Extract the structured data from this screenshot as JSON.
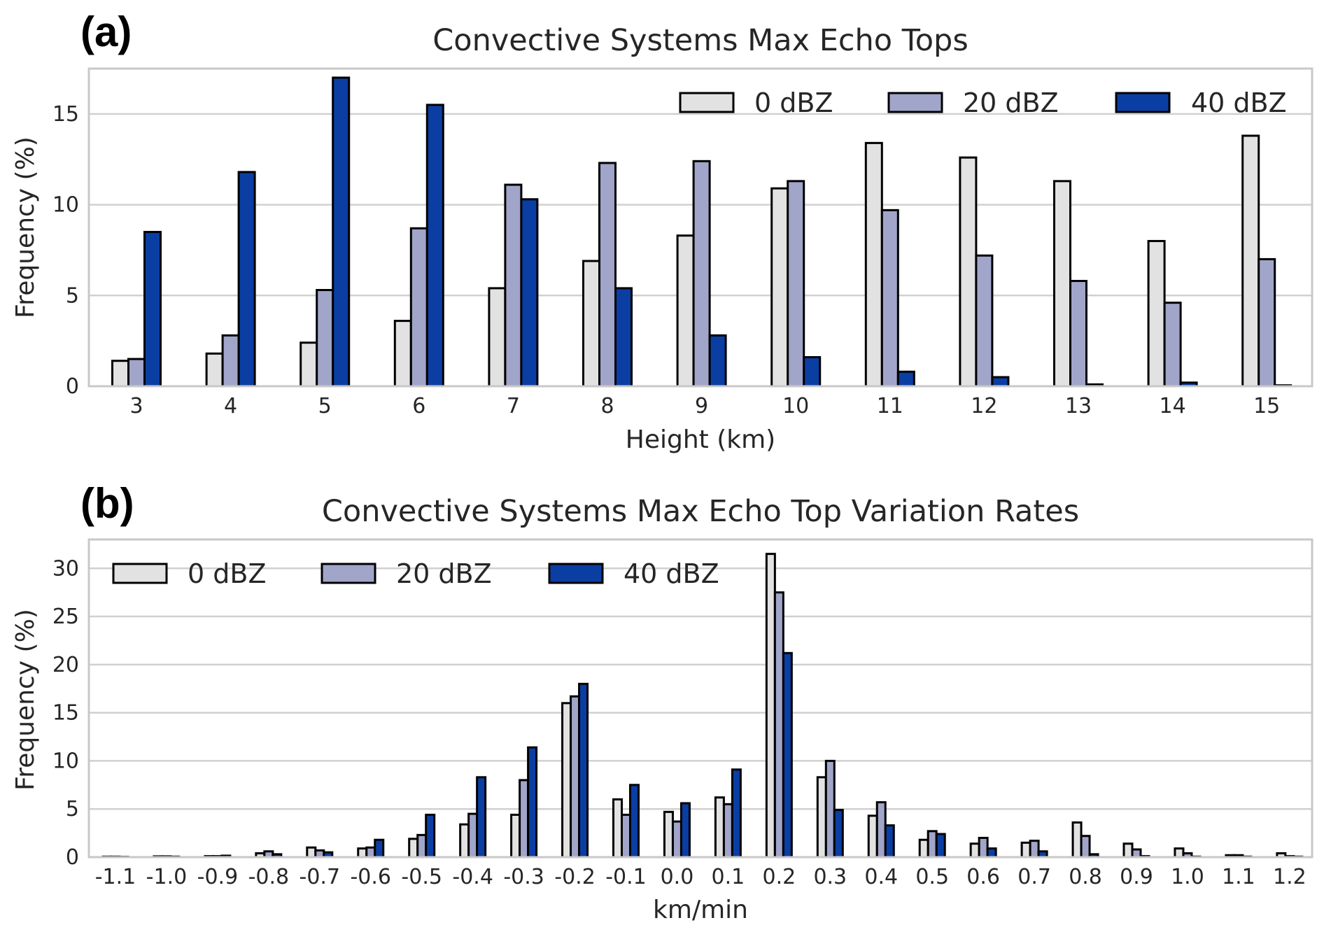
{
  "colors": {
    "0 dBZ": "#e2e2e2",
    "20 dBZ": "#a1a5c9",
    "40 dBZ": "#0a3ea3"
  },
  "chart_data": [
    {
      "panel_label": "(a)",
      "type": "bar",
      "title": "Convective Systems Max Echo Tops",
      "xlabel": "Height (km)",
      "ylabel": "Frequency (%)",
      "ylim": [
        0,
        17.5
      ],
      "yticks": [
        "0",
        "5",
        "10",
        "15"
      ],
      "categories": [
        "3",
        "4",
        "5",
        "6",
        "7",
        "8",
        "9",
        "10",
        "11",
        "12",
        "13",
        "14",
        "15"
      ],
      "legend_position": "top-right",
      "grid": true,
      "series": [
        {
          "name": "0 dBZ",
          "values": [
            1.4,
            1.8,
            2.4,
            3.6,
            5.4,
            6.9,
            8.3,
            10.9,
            13.4,
            12.6,
            11.3,
            8.0,
            13.8
          ]
        },
        {
          "name": "20 dBZ",
          "values": [
            1.5,
            2.8,
            5.3,
            8.7,
            11.1,
            12.3,
            12.4,
            11.3,
            9.7,
            7.2,
            5.8,
            4.6,
            7.0
          ]
        },
        {
          "name": "40 dBZ",
          "values": [
            8.5,
            11.8,
            17.0,
            15.5,
            10.3,
            5.4,
            2.8,
            1.6,
            0.8,
            0.5,
            0.1,
            0.2,
            0.05
          ]
        }
      ]
    },
    {
      "panel_label": "(b)",
      "type": "bar",
      "title": "Convective Systems Max Echo Top Variation Rates",
      "xlabel": "km/min",
      "ylabel": "Frequency (%)",
      "ylim": [
        0,
        33
      ],
      "yticks": [
        "0",
        "5",
        "10",
        "15",
        "20",
        "25",
        "30"
      ],
      "categories": [
        "-1.1",
        "-1.0",
        "-0.9",
        "-0.8",
        "-0.7",
        "-0.6",
        "-0.5",
        "-0.4",
        "-0.3",
        "-0.2",
        "-0.1",
        "0.0",
        "0.1",
        "0.2",
        "0.3",
        "0.4",
        "0.5",
        "0.6",
        "0.7",
        "0.8",
        "0.9",
        "1.0",
        "1.1",
        "1.2"
      ],
      "legend_position": "top-left",
      "grid": true,
      "series": [
        {
          "name": "0 dBZ",
          "values": [
            0.05,
            0.08,
            0.1,
            0.4,
            1.0,
            0.9,
            1.9,
            3.4,
            4.4,
            16.0,
            6.0,
            4.7,
            6.2,
            31.5,
            8.3,
            4.3,
            1.8,
            1.4,
            1.5,
            3.6,
            1.4,
            0.9,
            0.2,
            0.4
          ]
        },
        {
          "name": "20 dBZ",
          "values": [
            0.05,
            0.08,
            0.1,
            0.6,
            0.7,
            1.0,
            2.3,
            4.5,
            8.0,
            16.7,
            4.4,
            3.7,
            5.5,
            27.5,
            10.0,
            5.7,
            2.7,
            2.0,
            1.7,
            2.2,
            0.8,
            0.4,
            0.2,
            0.1
          ]
        },
        {
          "name": "40 dBZ",
          "values": [
            0.03,
            0.05,
            0.15,
            0.3,
            0.5,
            1.8,
            4.4,
            8.3,
            11.4,
            18.0,
            7.5,
            5.6,
            9.1,
            21.2,
            4.9,
            3.3,
            2.4,
            0.9,
            0.6,
            0.3,
            0.1,
            0.05,
            0.05,
            0.05
          ]
        }
      ]
    }
  ]
}
